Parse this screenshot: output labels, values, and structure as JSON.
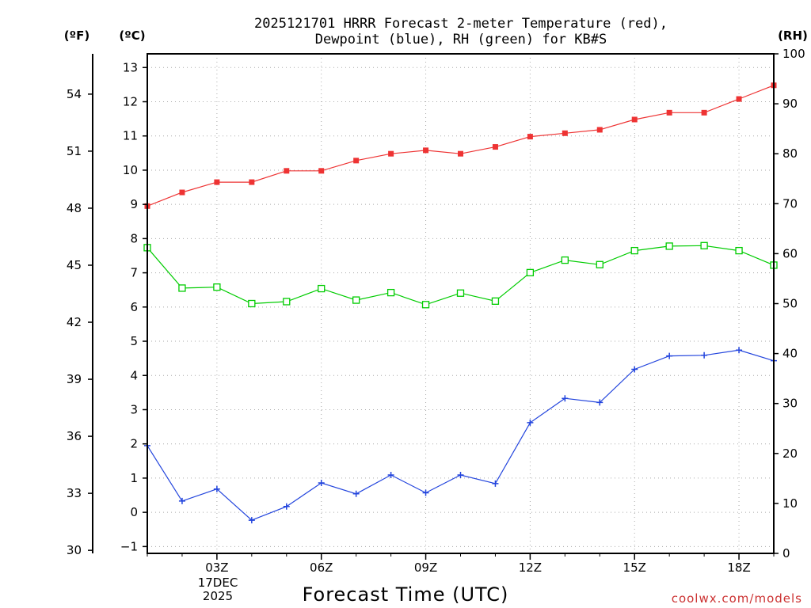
{
  "chart_data": {
    "type": "line",
    "title_line1": "2025121701 HRRR Forecast 2-meter Temperature (red),",
    "title_line2": "Dewpoint (blue), RH (green) for KB#S",
    "xlabel": "Forecast Time (UTC)",
    "units": {
      "fahrenheit": "(ºF)",
      "celsius": "(ºC)",
      "rh": "(RH)"
    },
    "x_hours": [
      1,
      2,
      3,
      4,
      5,
      6,
      7,
      8,
      9,
      10,
      11,
      12,
      13,
      14,
      15,
      16,
      17,
      18,
      19
    ],
    "xlim": [
      1,
      19
    ],
    "x_ticks": [
      {
        "hour": 3,
        "label": "03Z"
      },
      {
        "hour": 6,
        "label": "06Z"
      },
      {
        "hour": 9,
        "label": "09Z"
      },
      {
        "hour": 12,
        "label": "12Z"
      },
      {
        "hour": 15,
        "label": "15Z"
      },
      {
        "hour": 18,
        "label": "18Z"
      }
    ],
    "date_label": {
      "hour": 3,
      "line1": "17DEC",
      "line2": "2025"
    },
    "celsius_axis": {
      "range": [
        -1.2,
        13.4
      ],
      "ticks": [
        -1,
        0,
        1,
        2,
        3,
        4,
        5,
        6,
        7,
        8,
        9,
        10,
        11,
        12,
        13
      ]
    },
    "fahrenheit_axis": {
      "ticks": [
        30,
        33,
        36,
        39,
        42,
        45,
        48,
        51,
        54
      ]
    },
    "rh_axis": {
      "range": [
        0,
        100
      ],
      "ticks": [
        0,
        10,
        20,
        30,
        40,
        50,
        60,
        70,
        80,
        90,
        100
      ]
    },
    "series": [
      {
        "name": "Temperature",
        "units": "C",
        "color": "#ee3333",
        "marker": "filled-square",
        "values": [
          8.95,
          9.35,
          9.65,
          9.65,
          9.98,
          9.98,
          10.28,
          10.48,
          10.58,
          10.48,
          10.68,
          10.98,
          11.08,
          11.18,
          11.48,
          11.68,
          11.68,
          12.08,
          12.48
        ]
      },
      {
        "name": "RH",
        "units": "%",
        "color": "#00cc00",
        "marker": "open-square",
        "values": [
          61.2,
          53.1,
          53.3,
          50.0,
          50.4,
          53.0,
          50.7,
          52.2,
          49.8,
          52.1,
          50.5,
          56.2,
          58.7,
          57.8,
          60.6,
          61.5,
          61.6,
          60.6,
          57.7
        ]
      },
      {
        "name": "Dewpoint",
        "units": "C",
        "color": "#2244dd",
        "marker": "plus",
        "values": [
          1.95,
          0.33,
          0.68,
          -0.23,
          0.17,
          0.86,
          0.54,
          1.09,
          0.57,
          1.09,
          0.84,
          2.62,
          3.33,
          3.21,
          4.18,
          4.57,
          4.59,
          4.74,
          4.43
        ]
      }
    ]
  },
  "credit": {
    "text": "coolwx.com/models",
    "color": "#cc3333"
  }
}
